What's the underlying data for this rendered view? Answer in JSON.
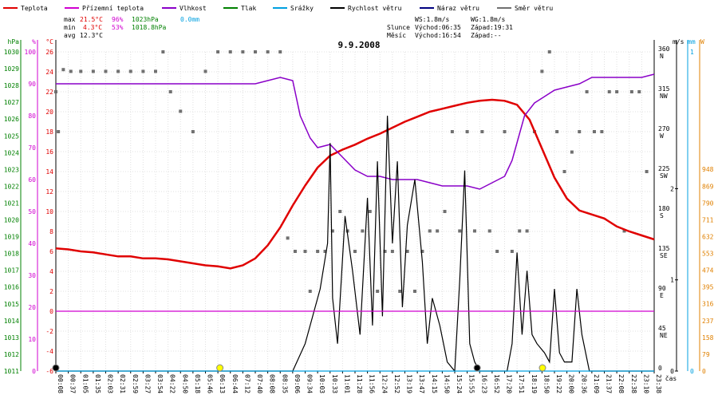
{
  "legend": [
    {
      "label": "Teplota",
      "color": "#e00000"
    },
    {
      "label": "Přízemní teplota",
      "color": "#d000d0"
    },
    {
      "label": "Vlhkost",
      "color": "#8a00c8"
    },
    {
      "label": "Tlak",
      "color": "#008000"
    },
    {
      "label": "Srážky",
      "color": "#00a0e0"
    },
    {
      "label": "Rychlost větru",
      "color": "#000000"
    },
    {
      "label": "Náraz větru",
      "color": "#000080"
    },
    {
      "label": "Směr větru",
      "color": "#707070"
    }
  ],
  "stats": {
    "max": {
      "label": "max",
      "temp": "21.5°C",
      "hum": "96%",
      "press": "1023hPa",
      "rain": "0.0mm"
    },
    "min": {
      "label": "min",
      "temp": "4.3°C",
      "hum": "53%",
      "press": "1018.8hPa"
    },
    "avg": {
      "label": "avg",
      "temp": "12.3°C"
    }
  },
  "wind_stats": {
    "ws": "WS:1.8m/s",
    "wg": "WG:1.8m/s"
  },
  "sun": {
    "label": "Slunce",
    "rise": "Východ:06:35",
    "set": "Západ:19:31"
  },
  "moon": {
    "label": "Měsíc",
    "rise": "Východ:16:54",
    "set": "Západ:--"
  },
  "chart_data": {
    "type": "line",
    "title": "9.9.2008",
    "xlabel": "čas",
    "x_ticks": [
      "00:08",
      "00:37",
      "01:05",
      "01:35",
      "02:03",
      "02:31",
      "02:59",
      "03:27",
      "03:54",
      "04:22",
      "04:50",
      "05:18",
      "05:46",
      "06:13",
      "06:44",
      "07:12",
      "07:40",
      "08:08",
      "08:35",
      "09:06",
      "09:34",
      "10:03",
      "10:33",
      "11:01",
      "11:28",
      "11:56",
      "12:24",
      "12:52",
      "13:19",
      "13:47",
      "14:15",
      "14:50",
      "15:24",
      "15:55",
      "16:23",
      "16:52",
      "17:20",
      "17:51",
      "18:19",
      "18:50",
      "19:22",
      "20:00",
      "20:36",
      "21:09",
      "21:37",
      "22:08",
      "22:38",
      "23:10",
      "23:38"
    ],
    "axes": {
      "pressure": {
        "label": "hPa",
        "range": [
          1011,
          1030
        ],
        "ticks": [
          1011,
          1012,
          1013,
          1014,
          1015,
          1016,
          1017,
          1018,
          1019,
          1020,
          1021,
          1022,
          1023,
          1024,
          1025,
          1026,
          1027,
          1028,
          1029,
          1030
        ],
        "color": "#008000"
      },
      "humidity": {
        "label": "%",
        "range": [
          0,
          100
        ],
        "ticks": [
          0,
          10,
          20,
          30,
          40,
          50,
          60,
          70,
          80,
          90,
          100
        ],
        "color": "#d000d0"
      },
      "temperature": {
        "label": "°C",
        "range": [
          -6,
          26
        ],
        "ticks": [
          -6,
          -4,
          -2,
          0,
          2,
          4,
          6,
          8,
          10,
          12,
          14,
          16,
          18,
          20,
          22,
          24,
          26
        ],
        "color": "#e00000"
      },
      "direction": {
        "range": [
          0,
          360
        ],
        "ticks": [
          {
            "v": 0,
            "deg": "0",
            "dir": ""
          },
          {
            "v": 45,
            "deg": "45",
            "dir": "NE"
          },
          {
            "v": 90,
            "deg": "90",
            "dir": "E"
          },
          {
            "v": 135,
            "deg": "135",
            "dir": "SE"
          },
          {
            "v": 180,
            "deg": "180",
            "dir": "S"
          },
          {
            "v": 225,
            "deg": "225",
            "dir": "SW"
          },
          {
            "v": 270,
            "deg": "270",
            "dir": "W"
          },
          {
            "v": 315,
            "deg": "315",
            "dir": "NW"
          },
          {
            "v": 360,
            "deg": "360",
            "dir": "N"
          }
        ]
      },
      "wind": {
        "label": "m/s",
        "range": [
          0,
          3.5
        ],
        "ticks": [
          0,
          1,
          2
        ]
      },
      "rain": {
        "label": "mm",
        "range": [
          0,
          1
        ],
        "ticks": [
          0,
          1
        ],
        "color": "#00a0e0"
      },
      "solar": {
        "label": "W",
        "range": [
          0,
          1500
        ],
        "ticks": [
          0,
          79,
          158,
          237,
          316,
          395,
          474,
          553,
          632,
          711,
          790,
          869,
          948
        ],
        "color": "#e08000"
      }
    },
    "series": [
      {
        "name": "Teplota",
        "axis": "temperature",
        "color": "#e00000",
        "x": [
          0.0,
          0.5,
          1.0,
          1.5,
          2.0,
          2.5,
          3.0,
          3.5,
          4.0,
          4.5,
          5.0,
          5.5,
          6.0,
          6.5,
          7.0,
          7.5,
          8.0,
          8.5,
          9.0,
          9.5,
          10.0,
          10.5,
          11.0,
          11.5,
          12.0,
          12.5,
          13.0,
          13.5,
          14.0,
          14.5,
          15.0,
          15.5,
          16.0,
          16.5,
          17.0,
          17.5,
          18.0,
          18.5,
          19.0,
          19.5,
          20.0,
          20.5,
          21.0,
          21.5,
          22.0,
          22.5,
          23.0,
          23.5,
          24.0
        ],
        "values": [
          6.3,
          6.2,
          6.0,
          5.9,
          5.7,
          5.5,
          5.5,
          5.3,
          5.3,
          5.2,
          5.0,
          4.8,
          4.6,
          4.5,
          4.3,
          4.6,
          5.3,
          6.6,
          8.4,
          10.6,
          12.6,
          14.4,
          15.6,
          16.2,
          16.7,
          17.3,
          17.8,
          18.4,
          19.0,
          19.5,
          20.0,
          20.3,
          20.6,
          20.9,
          21.1,
          21.2,
          21.1,
          20.7,
          19.2,
          16.3,
          13.4,
          11.3,
          10.1,
          9.7,
          9.3,
          8.5,
          8.0,
          7.6,
          7.2
        ]
      },
      {
        "name": "Vlhkost",
        "axis": "humidity",
        "color": "#8a00c8",
        "x": [
          0.0,
          1.0,
          2.0,
          3.0,
          4.0,
          5.0,
          6.0,
          7.0,
          8.0,
          8.5,
          9.0,
          9.5,
          9.8,
          10.2,
          10.5,
          11.0,
          11.5,
          12.0,
          12.5,
          13.0,
          13.5,
          14.0,
          14.5,
          15.0,
          15.5,
          16.0,
          16.5,
          17.0,
          17.5,
          18.0,
          18.3,
          18.8,
          19.2,
          19.6,
          20.0,
          20.5,
          21.0,
          21.5,
          22.0,
          22.5,
          23.0,
          23.5,
          24.0
        ],
        "values": [
          90,
          90,
          90,
          90,
          90,
          90,
          90,
          90,
          90,
          91,
          92,
          91,
          80,
          73,
          70,
          71,
          67,
          63,
          61,
          61,
          60,
          60,
          60,
          59,
          58,
          58,
          58,
          57,
          59,
          61,
          66,
          80,
          84,
          86,
          88,
          89,
          90,
          92,
          92,
          92,
          92,
          92,
          93
        ]
      },
      {
        "name": "Rychlost větru",
        "axis": "wind",
        "color": "#000000",
        "x": [
          0,
          9.5,
          10.0,
          10.3,
          10.6,
          10.9,
          11.0,
          11.1,
          11.3,
          11.6,
          11.9,
          12.2,
          12.5,
          12.7,
          12.9,
          13.1,
          13.3,
          13.5,
          13.7,
          13.9,
          14.1,
          14.4,
          14.7,
          14.9,
          15.1,
          15.4,
          15.7,
          16.0,
          16.2,
          16.4,
          16.6,
          16.8,
          17.0,
          17.3,
          17.6,
          18.1,
          18.3,
          18.5,
          18.7,
          18.9,
          19.1,
          19.3,
          19.6,
          19.8,
          20.0,
          20.2,
          20.4,
          20.7,
          20.9,
          21.1,
          21.4,
          21.6,
          24.0
        ],
        "values": [
          0,
          0,
          0.3,
          0.6,
          0.9,
          1.4,
          2.5,
          0.8,
          0.3,
          1.7,
          1.1,
          0.4,
          1.9,
          0.5,
          2.3,
          0.6,
          2.8,
          1.4,
          2.3,
          0.7,
          1.6,
          2.1,
          1.2,
          0.3,
          0.8,
          0.5,
          0.1,
          0,
          1.0,
          2.2,
          0.3,
          0.1,
          0,
          0,
          0,
          0,
          0.3,
          1.3,
          0.4,
          1.1,
          0.4,
          0.3,
          0.2,
          0.1,
          0.9,
          0.2,
          0.1,
          0.1,
          0.9,
          0.4,
          0,
          0,
          0
        ]
      },
      {
        "name": "Přízemní teplota",
        "axis": "temperature",
        "color": "#d000d0",
        "x": [
          0,
          24
        ],
        "values": [
          0,
          0
        ]
      },
      {
        "name": "Srážky",
        "axis": "rain",
        "color": "#00a0e0",
        "x": [
          0,
          24
        ],
        "values": [
          0,
          0
        ]
      }
    ],
    "wind_direction_points": {
      "axis": "direction",
      "color": "#707070",
      "x": [
        0.0,
        0.1,
        0.3,
        0.6,
        1.0,
        1.5,
        2.0,
        2.5,
        3.0,
        3.5,
        4.0,
        4.3,
        4.6,
        5.0,
        5.5,
        6.0,
        6.5,
        7.0,
        7.5,
        8.0,
        8.5,
        9.0,
        9.3,
        9.6,
        10.0,
        10.2,
        10.5,
        10.8,
        11.1,
        11.4,
        11.7,
        12.0,
        12.3,
        12.6,
        12.9,
        13.2,
        13.5,
        13.8,
        14.1,
        14.4,
        14.7,
        15.0,
        15.3,
        15.6,
        15.9,
        16.2,
        16.5,
        16.8,
        17.1,
        17.4,
        17.7,
        18.0,
        18.3,
        18.6,
        18.9,
        19.2,
        19.5,
        19.8,
        20.1,
        20.4,
        20.7,
        21.0,
        21.3,
        21.6,
        21.9,
        22.2,
        22.5,
        22.8,
        23.1,
        23.4,
        23.7
      ],
      "values": [
        315,
        270,
        340,
        338,
        338,
        338,
        338,
        338,
        338,
        338,
        338,
        360,
        315,
        293,
        270,
        338,
        360,
        360,
        360,
        360,
        360,
        360,
        150,
        135,
        135,
        90,
        135,
        135,
        158,
        180,
        158,
        135,
        158,
        180,
        90,
        135,
        135,
        90,
        135,
        90,
        135,
        158,
        158,
        180,
        270,
        158,
        270,
        158,
        270,
        158,
        135,
        270,
        135,
        158,
        158,
        270,
        338,
        360,
        270,
        225,
        247,
        270,
        315,
        270,
        270,
        315,
        315,
        158,
        315,
        315,
        225
      ]
    },
    "markers": [
      {
        "name": "Východ slunce",
        "x": 6.58,
        "color": "#ffff00"
      },
      {
        "name": "Západ slunce",
        "x": 19.52,
        "color": "#ffff00"
      },
      {
        "name": "Východ měsíce",
        "x": 16.9,
        "color": "#000000"
      },
      {
        "name": "Začátek dne",
        "x": 0.0,
        "color": "#000000"
      }
    ],
    "grid": true,
    "legend_position": "top"
  }
}
